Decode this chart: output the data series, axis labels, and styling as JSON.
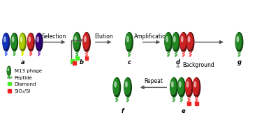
{
  "fig_width": 3.78,
  "fig_height": 1.78,
  "dpi": 100,
  "bg_color": "#ffffff",
  "a_colors": [
    "#1133bb",
    "#228822",
    "#aacc00",
    "#cc2222",
    "#330077"
  ],
  "a_dark": [
    "#0a1a66",
    "#114411",
    "#667700",
    "#661111",
    "#110044"
  ],
  "a_pep": [
    "#4466ff",
    "#44bb44",
    "#ddee00",
    "#ff4444",
    "#8844cc"
  ],
  "green_body": "#228822",
  "green_dark": "#114411",
  "green_pep": "#44aa44",
  "red_body": "#cc2222",
  "red_dark": "#661111",
  "red_pep": "#ff5555",
  "diamond_color": "#44ee22",
  "siosi_color": "#ee2222",
  "arrow_color": "#555555",
  "bg_arrow_color": "#aaaaaa",
  "label_fontsize": 6,
  "arrow_fontsize": 5.5,
  "legend_fontsize": 5,
  "labels": [
    "a",
    "b",
    "c",
    "d",
    "e",
    "f",
    "g"
  ],
  "text_selection": "Selection",
  "text_elution": "Elution",
  "text_amplification": "Amplification",
  "text_background": "Background",
  "text_repeat": "Repeat",
  "legend_m13": "M13 phage",
  "legend_peptide": "Peptide",
  "legend_diamond": "Diamond",
  "legend_siosi": "SiO₂/Si"
}
